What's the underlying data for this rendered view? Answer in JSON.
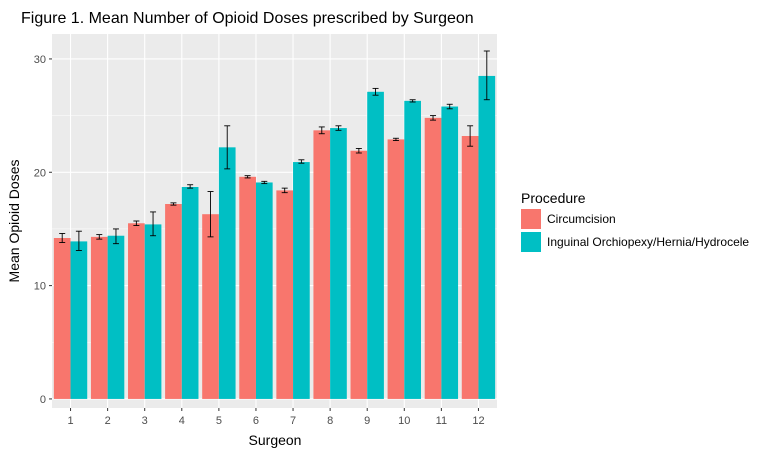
{
  "chart_data": {
    "type": "bar",
    "title": "Figure 1. Mean Number of Opioid Doses prescribed by Surgeon",
    "xlabel": "Surgeon",
    "ylabel": "Mean Opioid Doses",
    "categories": [
      "1",
      "2",
      "3",
      "4",
      "5",
      "6",
      "7",
      "8",
      "9",
      "10",
      "11",
      "12"
    ],
    "ylim": [
      -0.8,
      32.2
    ],
    "yticks": [
      0,
      10,
      20,
      30
    ],
    "yticks_labels": [
      "0",
      "10",
      "20",
      "30"
    ],
    "grid": true,
    "legend": {
      "title": "Procedure",
      "placement": "right"
    },
    "series": [
      {
        "name": "Circumcision",
        "color": "#F8766D",
        "values": [
          14.2,
          14.3,
          15.5,
          17.2,
          16.3,
          19.6,
          18.4,
          23.7,
          21.9,
          22.9,
          24.8,
          23.2
        ],
        "error_low": [
          13.8,
          14.1,
          15.3,
          17.1,
          14.3,
          19.5,
          18.2,
          23.4,
          21.7,
          22.8,
          24.6,
          22.3
        ],
        "error_high": [
          14.6,
          14.5,
          15.7,
          17.3,
          18.3,
          19.7,
          18.6,
          24.0,
          22.1,
          23.0,
          25.0,
          24.1
        ]
      },
      {
        "name": "Inguinal Orchiopexy/Hernia/Hydrocele",
        "color": "#00BFC4",
        "values": [
          13.9,
          14.4,
          15.4,
          18.7,
          22.2,
          19.1,
          20.9,
          23.9,
          27.1,
          26.3,
          25.8,
          28.5
        ],
        "error_low": [
          13.1,
          13.7,
          14.4,
          18.6,
          20.3,
          19.0,
          20.8,
          23.7,
          26.8,
          26.2,
          25.6,
          26.4
        ],
        "error_high": [
          14.8,
          15.0,
          16.5,
          18.9,
          24.1,
          19.2,
          21.1,
          24.1,
          27.4,
          26.4,
          26.0,
          30.7
        ]
      }
    ]
  }
}
